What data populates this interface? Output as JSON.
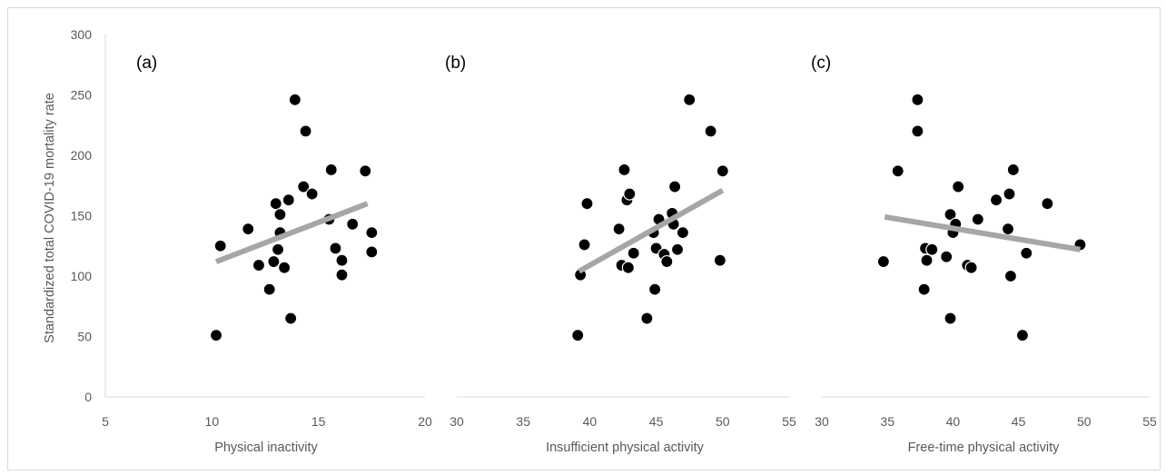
{
  "chart_data": {
    "type": "scatter",
    "ylabel": "Standardized total COVID-19 mortality rate",
    "ylim": [
      0,
      300
    ],
    "yticks": [
      0,
      50,
      100,
      150,
      200,
      250,
      300
    ],
    "trendline_color": "#a6a6a6",
    "marker_color": "#000000",
    "panels": [
      {
        "label": "(a)",
        "xlabel": "Physical inactivity",
        "xlim": [
          5,
          20
        ],
        "xticks": [
          5,
          10,
          15,
          20
        ],
        "trendline": [
          [
            10.2,
            112
          ],
          [
            17.3,
            160
          ]
        ],
        "points": [
          [
            10.2,
            51
          ],
          [
            10.4,
            125
          ],
          [
            11.7,
            139
          ],
          [
            12.2,
            109
          ],
          [
            12.7,
            89
          ],
          [
            12.9,
            112
          ],
          [
            13.0,
            160
          ],
          [
            13.1,
            122
          ],
          [
            13.2,
            151
          ],
          [
            13.2,
            136
          ],
          [
            13.4,
            107
          ],
          [
            13.6,
            163
          ],
          [
            13.7,
            65
          ],
          [
            13.9,
            246
          ],
          [
            14.3,
            174
          ],
          [
            14.4,
            220
          ],
          [
            14.7,
            168
          ],
          [
            15.5,
            147
          ],
          [
            15.6,
            188
          ],
          [
            15.8,
            123
          ],
          [
            16.1,
            113
          ],
          [
            16.1,
            101
          ],
          [
            16.6,
            143
          ],
          [
            17.2,
            187
          ],
          [
            17.5,
            136
          ],
          [
            17.5,
            120
          ]
        ]
      },
      {
        "label": "(b)",
        "xlabel": "Insufficient physical activity",
        "xlim": [
          30,
          55
        ],
        "xticks": [
          30,
          35,
          40,
          45,
          50,
          55
        ],
        "trendline": [
          [
            39.2,
            104
          ],
          [
            50.0,
            171
          ]
        ],
        "points": [
          [
            39.1,
            51
          ],
          [
            39.3,
            101
          ],
          [
            39.6,
            126
          ],
          [
            39.8,
            160
          ],
          [
            42.2,
            139
          ],
          [
            42.4,
            109
          ],
          [
            42.6,
            188
          ],
          [
            42.8,
            163
          ],
          [
            42.9,
            107
          ],
          [
            43.0,
            168
          ],
          [
            43.3,
            119
          ],
          [
            44.3,
            65
          ],
          [
            44.8,
            136
          ],
          [
            44.9,
            89
          ],
          [
            45.0,
            123
          ],
          [
            45.2,
            147
          ],
          [
            45.6,
            118
          ],
          [
            45.8,
            112
          ],
          [
            46.2,
            152
          ],
          [
            46.3,
            143
          ],
          [
            46.4,
            174
          ],
          [
            46.6,
            122
          ],
          [
            47.0,
            136
          ],
          [
            47.5,
            246
          ],
          [
            49.1,
            220
          ],
          [
            49.8,
            113
          ],
          [
            50.0,
            187
          ]
        ]
      },
      {
        "label": "(c)",
        "xlabel": "Free-time physical activity",
        "xlim": [
          30,
          55
        ],
        "xticks": [
          30,
          35,
          40,
          45,
          50,
          55
        ],
        "trendline": [
          [
            34.8,
            149
          ],
          [
            49.7,
            122
          ]
        ],
        "points": [
          [
            34.7,
            112
          ],
          [
            35.8,
            187
          ],
          [
            37.3,
            246
          ],
          [
            37.3,
            220
          ],
          [
            37.8,
            89
          ],
          [
            37.9,
            123
          ],
          [
            38.0,
            113
          ],
          [
            38.4,
            122
          ],
          [
            39.5,
            116
          ],
          [
            39.8,
            65
          ],
          [
            39.8,
            151
          ],
          [
            40.0,
            136
          ],
          [
            40.2,
            143
          ],
          [
            40.4,
            174
          ],
          [
            41.1,
            109
          ],
          [
            41.4,
            107
          ],
          [
            41.9,
            147
          ],
          [
            43.3,
            163
          ],
          [
            44.2,
            139
          ],
          [
            44.3,
            168
          ],
          [
            44.4,
            100
          ],
          [
            44.6,
            188
          ],
          [
            45.3,
            51
          ],
          [
            45.6,
            119
          ],
          [
            47.2,
            160
          ],
          [
            49.7,
            126
          ]
        ]
      }
    ]
  }
}
